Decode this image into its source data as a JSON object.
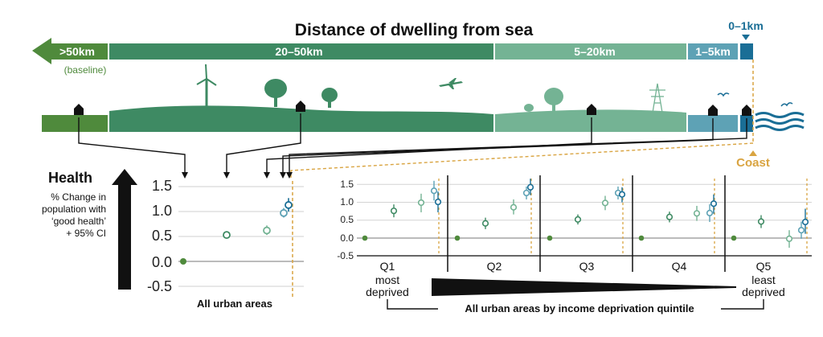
{
  "header": {
    "title": "Distance of dwelling from sea",
    "bands": [
      {
        "label": ">50km",
        "sub": "(baseline)",
        "color": "#4f8a3c"
      },
      {
        "label": "20–50km",
        "color": "#3e8a63"
      },
      {
        "label": "5–20km",
        "color": "#74b394"
      },
      {
        "label": "1–5km",
        "color": "#5ea2b5"
      },
      {
        "label": "0–1km",
        "color": "#1a6e96"
      }
    ],
    "coast_label": "Coast"
  },
  "colors": {
    "baseline": "#4f8a3c",
    "d20_50": "#3e8a63",
    "d5_20": "#74b394",
    "d1_5": "#5ea2b5",
    "d0_1": "#1a6e96",
    "coast_line": "#d9a441",
    "land": "#4a8a62"
  },
  "health_label": {
    "title": "Health",
    "desc_lines": [
      "% Change in",
      "population with",
      "‘good health’",
      "+ 95% CI"
    ]
  },
  "chart_data": [
    {
      "type": "scatter",
      "title": "All urban areas",
      "yticks": [
        "1.5",
        "1.0",
        "0.5",
        "0.0",
        "-0.5"
      ],
      "ylim": [
        -0.5,
        1.5
      ],
      "series": [
        {
          "name": ">50km",
          "x": 1,
          "y": 0.0,
          "ci": [
            0.0,
            0.0
          ]
        },
        {
          "name": "20–50km",
          "x": 2,
          "y": 0.53,
          "ci": [
            0.47,
            0.6
          ]
        },
        {
          "name": "5–20km",
          "x": 3,
          "y": 0.62,
          "ci": [
            0.53,
            0.72
          ]
        },
        {
          "name": "1–5km",
          "x": 4,
          "y": 0.97,
          "ci": [
            0.88,
            1.07
          ]
        },
        {
          "name": "0–1km",
          "x": 5,
          "y": 1.13,
          "ci": [
            1.0,
            1.27
          ]
        }
      ]
    },
    {
      "type": "scatter",
      "title": "All urban areas by income deprivation quintile",
      "yticks": [
        "1.5",
        "1.0",
        "0.5",
        "0.0",
        "-0.5"
      ],
      "ylim": [
        -0.5,
        1.5
      ],
      "panels": [
        {
          "label": "Q1",
          "sub": [
            "most",
            "deprived"
          ],
          "points": [
            {
              "name": ">50km",
              "y": 0.0,
              "ci": [
                0.0,
                0.0
              ]
            },
            {
              "name": "20–50km",
              "y": 0.76,
              "ci": [
                0.58,
                0.94
              ]
            },
            {
              "name": "5–20km",
              "y": 0.99,
              "ci": [
                0.72,
                1.24
              ]
            },
            {
              "name": "1–5km",
              "y": 1.32,
              "ci": [
                1.05,
                1.6
              ]
            },
            {
              "name": "0–1km",
              "y": 1.01,
              "ci": [
                0.72,
                1.3
              ]
            }
          ]
        },
        {
          "label": "Q2",
          "points": [
            {
              "name": ">50km",
              "y": 0.0,
              "ci": [
                0.0,
                0.0
              ]
            },
            {
              "name": "20–50km",
              "y": 0.41,
              "ci": [
                0.25,
                0.57
              ]
            },
            {
              "name": "5–20km",
              "y": 0.86,
              "ci": [
                0.66,
                1.08
              ]
            },
            {
              "name": "1–5km",
              "y": 1.26,
              "ci": [
                1.08,
                1.44
              ]
            },
            {
              "name": "0–1km",
              "y": 1.42,
              "ci": [
                1.2,
                1.66
              ]
            }
          ]
        },
        {
          "label": "Q3",
          "points": [
            {
              "name": ">50km",
              "y": 0.0,
              "ci": [
                0.0,
                0.0
              ]
            },
            {
              "name": "20–50km",
              "y": 0.52,
              "ci": [
                0.38,
                0.66
              ]
            },
            {
              "name": "5–20km",
              "y": 0.98,
              "ci": [
                0.78,
                1.18
              ]
            },
            {
              "name": "1–5km",
              "y": 1.26,
              "ci": [
                1.08,
                1.44
              ]
            },
            {
              "name": "0–1km",
              "y": 1.22,
              "ci": [
                1.0,
                1.42
              ]
            }
          ]
        },
        {
          "label": "Q4",
          "points": [
            {
              "name": ">50km",
              "y": 0.0,
              "ci": [
                0.0,
                0.0
              ]
            },
            {
              "name": "20–50km",
              "y": 0.59,
              "ci": [
                0.44,
                0.74
              ]
            },
            {
              "name": "5–20km",
              "y": 0.69,
              "ci": [
                0.48,
                0.9
              ]
            },
            {
              "name": "1–5km",
              "y": 0.7,
              "ci": [
                0.45,
                0.95
              ]
            },
            {
              "name": "0–1km",
              "y": 0.96,
              "ci": [
                0.68,
                1.22
              ]
            }
          ]
        },
        {
          "label": "Q5",
          "sub": [
            "least",
            "deprived"
          ],
          "points": [
            {
              "name": ">50km",
              "y": 0.0,
              "ci": [
                0.0,
                0.0
              ]
            },
            {
              "name": "20–50km",
              "y": 0.46,
              "ci": [
                0.28,
                0.64
              ]
            },
            {
              "name": "5–20km",
              "y": -0.02,
              "ci": [
                -0.27,
                0.22
              ]
            },
            {
              "name": "1–5km",
              "y": 0.22,
              "ci": [
                -0.02,
                0.46
              ]
            },
            {
              "name": "0–1km",
              "y": 0.45,
              "ci": [
                0.12,
                0.82
              ]
            }
          ]
        }
      ]
    }
  ]
}
